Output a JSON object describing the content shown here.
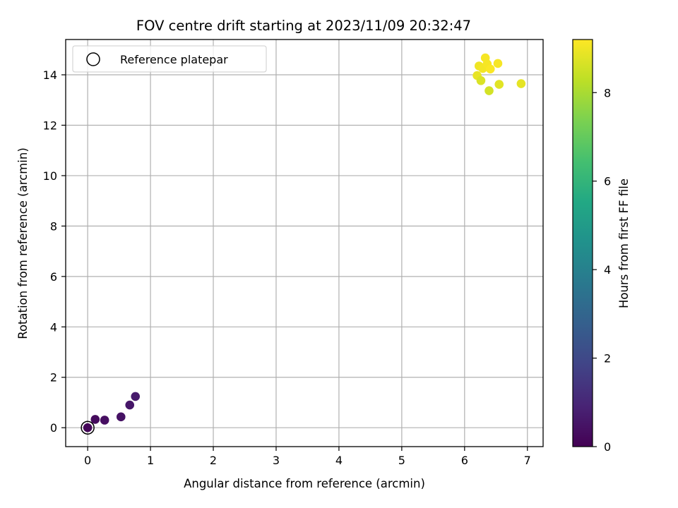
{
  "chart_data": {
    "type": "scatter",
    "title": "FOV centre drift starting at 2023/11/09 20:32:47",
    "xlabel": "Angular distance from reference (arcmin)",
    "ylabel": "Rotation from reference (arcmin)",
    "xlim": [
      -0.35,
      7.25
    ],
    "ylim": [
      -0.75,
      15.4
    ],
    "xticks": [
      "0",
      "1",
      "2",
      "3",
      "4",
      "5",
      "6",
      "7"
    ],
    "yticks": [
      "0",
      "2",
      "4",
      "6",
      "8",
      "10",
      "12",
      "14"
    ],
    "grid": true,
    "legend": {
      "placement": "top-left",
      "entries": [
        "Reference platepar"
      ]
    },
    "colorbar": {
      "label": "Hours from first FF file",
      "range": [
        0,
        9.2
      ],
      "ticks": [
        "0",
        "2",
        "4",
        "6",
        "8"
      ],
      "colormap": "viridis"
    },
    "reference_point": {
      "x": 0,
      "y": 0
    },
    "points": [
      {
        "x": 0.0,
        "y": 0.0,
        "hours": 0.15
      },
      {
        "x": 0.12,
        "y": 0.33,
        "hours": 0.25
      },
      {
        "x": 0.27,
        "y": 0.3,
        "hours": 0.35
      },
      {
        "x": 0.53,
        "y": 0.43,
        "hours": 0.45
      },
      {
        "x": 0.67,
        "y": 0.9,
        "hours": 0.55
      },
      {
        "x": 0.76,
        "y": 1.24,
        "hours": 0.65
      },
      {
        "x": 6.2,
        "y": 13.97,
        "hours": 8.9
      },
      {
        "x": 6.23,
        "y": 14.35,
        "hours": 9.0
      },
      {
        "x": 6.26,
        "y": 13.77,
        "hours": 8.7
      },
      {
        "x": 6.29,
        "y": 14.25,
        "hours": 9.05
      },
      {
        "x": 6.33,
        "y": 14.67,
        "hours": 9.1
      },
      {
        "x": 6.36,
        "y": 14.43,
        "hours": 9.1
      },
      {
        "x": 6.39,
        "y": 13.37,
        "hours": 8.6
      },
      {
        "x": 6.41,
        "y": 14.23,
        "hours": 9.15
      },
      {
        "x": 6.53,
        "y": 14.45,
        "hours": 9.1
      },
      {
        "x": 6.55,
        "y": 13.62,
        "hours": 8.8
      },
      {
        "x": 6.9,
        "y": 13.65,
        "hours": 8.85
      }
    ]
  }
}
